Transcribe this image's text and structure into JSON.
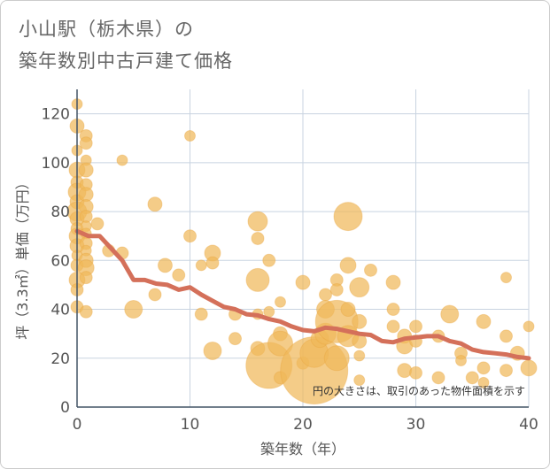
{
  "title": {
    "line1": "小山駅（栃木県）の",
    "line2": "築年数別中古戸建て価格"
  },
  "colors": {
    "bubble": "#f0b85a",
    "trend": "#d4705a",
    "grid": "#c8d3e0",
    "axis": "#445566"
  },
  "chart_data": {
    "type": "scatter",
    "xlabel": "築年数（年）",
    "ylabel": "坪（3.3㎡）単価（万円）",
    "xlim": [
      0,
      40
    ],
    "ylim": [
      0,
      130
    ],
    "xticks": [
      "0",
      "10",
      "20",
      "30",
      "40"
    ],
    "yticks": [
      "0",
      "20",
      "40",
      "60",
      "80",
      "100",
      "120"
    ],
    "note": "円の大きさは、取引のあった物件面積を示す",
    "trend": [
      [
        0,
        72
      ],
      [
        1,
        70
      ],
      [
        2,
        70
      ],
      [
        3,
        65
      ],
      [
        4,
        60
      ],
      [
        5,
        52
      ],
      [
        6,
        52
      ],
      [
        7,
        50.5
      ],
      [
        8,
        50
      ],
      [
        9,
        48
      ],
      [
        10,
        49
      ],
      [
        11,
        46
      ],
      [
        12,
        43.5
      ],
      [
        13,
        41
      ],
      [
        14,
        40
      ],
      [
        15,
        38
      ],
      [
        16,
        37.5
      ],
      [
        17,
        36
      ],
      [
        18,
        35
      ],
      [
        19,
        33
      ],
      [
        20,
        31.5
      ],
      [
        21,
        31
      ],
      [
        22,
        32.5
      ],
      [
        23,
        32
      ],
      [
        24,
        31
      ],
      [
        25,
        30
      ],
      [
        26,
        29.5
      ],
      [
        27,
        27
      ],
      [
        28,
        26.5
      ],
      [
        29,
        28
      ],
      [
        30,
        28.5
      ],
      [
        31,
        29
      ],
      [
        32,
        29
      ],
      [
        33,
        27
      ],
      [
        34,
        26
      ],
      [
        35,
        23.5
      ],
      [
        36,
        22.5
      ],
      [
        37,
        22
      ],
      [
        38,
        21.5
      ],
      [
        39,
        20.5
      ],
      [
        40,
        20
      ]
    ],
    "points": [
      {
        "x": 0,
        "y": 124,
        "size": 6
      },
      {
        "x": 0,
        "y": 115,
        "size": 8
      },
      {
        "x": 0,
        "y": 105,
        "size": 6
      },
      {
        "x": 0,
        "y": 97,
        "size": 9
      },
      {
        "x": 0,
        "y": 92,
        "size": 7
      },
      {
        "x": 0,
        "y": 88,
        "size": 10
      },
      {
        "x": 0,
        "y": 84,
        "size": 8
      },
      {
        "x": 0,
        "y": 80,
        "size": 11
      },
      {
        "x": 0,
        "y": 77,
        "size": 8
      },
      {
        "x": 0,
        "y": 73,
        "size": 7
      },
      {
        "x": 0,
        "y": 70,
        "size": 9
      },
      {
        "x": 0,
        "y": 66,
        "size": 8
      },
      {
        "x": 0,
        "y": 62,
        "size": 6
      },
      {
        "x": 0,
        "y": 58,
        "size": 7
      },
      {
        "x": 0,
        "y": 52,
        "size": 9
      },
      {
        "x": 0,
        "y": 48,
        "size": 7
      },
      {
        "x": 0,
        "y": 41,
        "size": 7
      },
      {
        "x": 0.8,
        "y": 111,
        "size": 7
      },
      {
        "x": 0.8,
        "y": 108,
        "size": 7
      },
      {
        "x": 0.8,
        "y": 101,
        "size": 6
      },
      {
        "x": 0.8,
        "y": 97,
        "size": 8
      },
      {
        "x": 0.8,
        "y": 91,
        "size": 7
      },
      {
        "x": 0.8,
        "y": 87,
        "size": 8
      },
      {
        "x": 0.8,
        "y": 82,
        "size": 8
      },
      {
        "x": 0.8,
        "y": 78,
        "size": 7
      },
      {
        "x": 0.8,
        "y": 74,
        "size": 6
      },
      {
        "x": 0.8,
        "y": 71,
        "size": 6
      },
      {
        "x": 0.8,
        "y": 67,
        "size": 7
      },
      {
        "x": 0.8,
        "y": 64,
        "size": 6
      },
      {
        "x": 0.8,
        "y": 60,
        "size": 8
      },
      {
        "x": 0.8,
        "y": 57,
        "size": 9
      },
      {
        "x": 0.8,
        "y": 53,
        "size": 7
      },
      {
        "x": 0.8,
        "y": 39,
        "size": 7
      },
      {
        "x": 1.8,
        "y": 75,
        "size": 7
      },
      {
        "x": 2.8,
        "y": 64,
        "size": 7
      },
      {
        "x": 4,
        "y": 101,
        "size": 6
      },
      {
        "x": 4,
        "y": 63,
        "size": 7
      },
      {
        "x": 5,
        "y": 40,
        "size": 10
      },
      {
        "x": 6.9,
        "y": 83,
        "size": 8
      },
      {
        "x": 6.9,
        "y": 46,
        "size": 7
      },
      {
        "x": 7.8,
        "y": 58,
        "size": 8
      },
      {
        "x": 9,
        "y": 54,
        "size": 7
      },
      {
        "x": 10,
        "y": 111,
        "size": 6
      },
      {
        "x": 10,
        "y": 70,
        "size": 7
      },
      {
        "x": 11,
        "y": 58,
        "size": 6
      },
      {
        "x": 11,
        "y": 38,
        "size": 7
      },
      {
        "x": 12,
        "y": 63,
        "size": 9
      },
      {
        "x": 12,
        "y": 59,
        "size": 7
      },
      {
        "x": 12,
        "y": 23,
        "size": 10
      },
      {
        "x": 14,
        "y": 38,
        "size": 7
      },
      {
        "x": 14,
        "y": 28,
        "size": 7
      },
      {
        "x": 16,
        "y": 76,
        "size": 11
      },
      {
        "x": 16,
        "y": 69,
        "size": 7
      },
      {
        "x": 16,
        "y": 52,
        "size": 13
      },
      {
        "x": 16,
        "y": 38,
        "size": 6
      },
      {
        "x": 16,
        "y": 24,
        "size": 8
      },
      {
        "x": 17,
        "y": 60,
        "size": 7
      },
      {
        "x": 17,
        "y": 39,
        "size": 6
      },
      {
        "x": 17,
        "y": 17,
        "size": 26
      },
      {
        "x": 18,
        "y": 43,
        "size": 6
      },
      {
        "x": 18,
        "y": 30,
        "size": 8
      },
      {
        "x": 18,
        "y": 26,
        "size": 14
      },
      {
        "x": 18,
        "y": 12,
        "size": 7
      },
      {
        "x": 20,
        "y": 51,
        "size": 8
      },
      {
        "x": 20,
        "y": 18,
        "size": 7
      },
      {
        "x": 21,
        "y": 15,
        "size": 38
      },
      {
        "x": 21,
        "y": 22,
        "size": 16
      },
      {
        "x": 21.5,
        "y": 28,
        "size": 10
      },
      {
        "x": 22,
        "y": 46,
        "size": 7
      },
      {
        "x": 22,
        "y": 40,
        "size": 10
      },
      {
        "x": 22,
        "y": 30,
        "size": 12
      },
      {
        "x": 23,
        "y": 52,
        "size": 7
      },
      {
        "x": 23,
        "y": 48,
        "size": 7
      },
      {
        "x": 23,
        "y": 35,
        "size": 24
      },
      {
        "x": 23,
        "y": 20,
        "size": 14
      },
      {
        "x": 24,
        "y": 78,
        "size": 16
      },
      {
        "x": 24,
        "y": 58,
        "size": 9
      },
      {
        "x": 24,
        "y": 40,
        "size": 8
      },
      {
        "x": 24,
        "y": 29,
        "size": 12
      },
      {
        "x": 25,
        "y": 49,
        "size": 11
      },
      {
        "x": 25,
        "y": 35,
        "size": 8
      },
      {
        "x": 25,
        "y": 27,
        "size": 8
      },
      {
        "x": 25,
        "y": 21,
        "size": 6
      },
      {
        "x": 25,
        "y": 11,
        "size": 6
      },
      {
        "x": 26,
        "y": 56,
        "size": 7
      },
      {
        "x": 28,
        "y": 51,
        "size": 8
      },
      {
        "x": 28,
        "y": 40,
        "size": 7
      },
      {
        "x": 28,
        "y": 33,
        "size": 7
      },
      {
        "x": 29,
        "y": 29,
        "size": 8
      },
      {
        "x": 29,
        "y": 25,
        "size": 9
      },
      {
        "x": 29,
        "y": 15,
        "size": 8
      },
      {
        "x": 30,
        "y": 33,
        "size": 7
      },
      {
        "x": 30,
        "y": 27,
        "size": 7
      },
      {
        "x": 30,
        "y": 14,
        "size": 7
      },
      {
        "x": 32,
        "y": 29,
        "size": 7
      },
      {
        "x": 32,
        "y": 12,
        "size": 7
      },
      {
        "x": 33,
        "y": 38,
        "size": 10
      },
      {
        "x": 34,
        "y": 22,
        "size": 7
      },
      {
        "x": 34,
        "y": 19,
        "size": 6
      },
      {
        "x": 35,
        "y": 12,
        "size": 7
      },
      {
        "x": 36,
        "y": 35,
        "size": 8
      },
      {
        "x": 36,
        "y": 16,
        "size": 7
      },
      {
        "x": 36,
        "y": 10,
        "size": 6
      },
      {
        "x": 38,
        "y": 53,
        "size": 6
      },
      {
        "x": 38,
        "y": 29,
        "size": 7
      },
      {
        "x": 38,
        "y": 15,
        "size": 7
      },
      {
        "x": 39,
        "y": 22,
        "size": 8
      },
      {
        "x": 40,
        "y": 33,
        "size": 6
      },
      {
        "x": 40,
        "y": 16,
        "size": 9
      }
    ]
  }
}
